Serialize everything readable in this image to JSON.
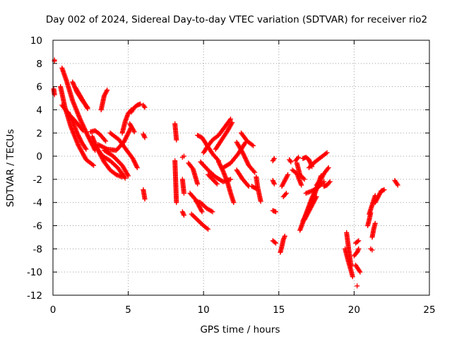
{
  "chart_data": {
    "type": "scatter",
    "title": "Day 002 of 2024, Sidereal Day-to-day VTEC variation (SDTVAR) for receiver rio2",
    "xlabel": "GPS time / hours",
    "ylabel": "SDTVAR / TECUs",
    "xlim": [
      0,
      25
    ],
    "ylim": [
      -12,
      10
    ],
    "xticks": [
      0,
      5,
      10,
      15,
      20,
      25
    ],
    "yticks": [
      -12,
      -10,
      -8,
      -6,
      -4,
      -2,
      0,
      2,
      4,
      6,
      8,
      10
    ],
    "grid": true,
    "marker": "+",
    "color": "#ff0000",
    "series": [
      {
        "name": "SDTVAR",
        "segments": [
          {
            "x": [
              0.05,
              0.1
            ],
            "y": [
              5.8,
              5.3
            ]
          },
          {
            "x": [
              0.1,
              0.1
            ],
            "y": [
              8.3,
              8.2
            ]
          },
          {
            "x": [
              0.6,
              0.9,
              1.3,
              1.8,
              2.3,
              2.8
            ],
            "y": [
              7.6,
              6.5,
              4.8,
              3.2,
              1.8,
              0.5
            ]
          },
          {
            "x": [
              0.5,
              0.8,
              1.2,
              1.7,
              2.2,
              2.7
            ],
            "y": [
              6.0,
              4.2,
              2.5,
              0.9,
              -0.3,
              -0.8
            ]
          },
          {
            "x": [
              0.6,
              1.0,
              1.5,
              2.0
            ],
            "y": [
              4.4,
              3.7,
              3.0,
              2.2
            ]
          },
          {
            "x": [
              1.0,
              1.3,
              1.6,
              1.9,
              2.2
            ],
            "y": [
              3.8,
              3.0,
              2.0,
              1.2,
              0.6
            ]
          },
          {
            "x": [
              1.3,
              1.6,
              2.0,
              2.3
            ],
            "y": [
              6.4,
              5.5,
              4.7,
              4.2
            ]
          },
          {
            "x": [
              1.5,
              1.9,
              2.3
            ],
            "y": [
              5.9,
              5.0,
              4.1
            ]
          },
          {
            "x": [
              2.6,
              3.0,
              3.4,
              3.8,
              4.2,
              4.6
            ],
            "y": [
              1.7,
              0.5,
              -0.5,
              -1.2,
              -1.6,
              -1.8
            ]
          },
          {
            "x": [
              2.5,
              2.9,
              3.3,
              3.8,
              4.3,
              4.8
            ],
            "y": [
              1.3,
              0.7,
              0.0,
              -0.4,
              -1.0,
              -1.9
            ]
          },
          {
            "x": [
              2.5,
              2.8,
              3.1,
              3.5
            ],
            "y": [
              2.1,
              2.2,
              1.9,
              1.3
            ]
          },
          {
            "x": [
              3.2,
              3.3,
              3.4,
              3.6
            ],
            "y": [
              4.0,
              4.6,
              5.2,
              5.7
            ]
          },
          {
            "x": [
              3.0,
              3.6,
              4.2,
              4.7,
              5.2
            ],
            "y": [
              1.0,
              0.6,
              0.5,
              1.2,
              2.5
            ]
          },
          {
            "x": [
              3.4,
              4.0,
              4.6,
              5.0
            ],
            "y": [
              0.5,
              0.0,
              -0.8,
              -1.7
            ]
          },
          {
            "x": [
              3.8,
              4.4,
              4.9,
              5.3,
              5.6
            ],
            "y": [
              2.0,
              1.4,
              0.5,
              -0.2,
              -1.0
            ]
          },
          {
            "x": [
              4.6,
              4.8,
              5.0,
              5.2
            ],
            "y": [
              2.0,
              3.0,
              3.7,
              4.0
            ]
          },
          {
            "x": [
              5.2,
              5.4,
              5.6,
              5.8
            ],
            "y": [
              3.8,
              4.2,
              4.4,
              4.5
            ]
          },
          {
            "x": [
              5.1,
              5.4
            ],
            "y": [
              2.8,
              2.1
            ]
          },
          {
            "x": [
              6.0,
              6.1
            ],
            "y": [
              4.4,
              4.2
            ]
          },
          {
            "x": [
              6.0,
              6.1
            ],
            "y": [
              1.9,
              1.6
            ]
          },
          {
            "x": [
              6.0,
              6.1
            ],
            "y": [
              -2.9,
              -3.7
            ]
          },
          {
            "x": [
              8.1,
              8.2
            ],
            "y": [
              2.8,
              1.4
            ]
          },
          {
            "x": [
              8.1,
              8.2
            ],
            "y": [
              -0.4,
              -4.0
            ]
          },
          {
            "x": [
              8.6,
              8.7
            ],
            "y": [
              -2.0,
              -3.2
            ]
          },
          {
            "x": [
              8.6,
              8.7
            ],
            "y": [
              -4.8,
              -5.1
            ]
          },
          {
            "x": [
              8.6,
              8.7
            ],
            "y": [
              -0.1,
              0.0
            ]
          },
          {
            "x": [
              9.0,
              9.3,
              9.6
            ],
            "y": [
              -0.6,
              -1.1,
              -2.4
            ]
          },
          {
            "x": [
              9.1,
              9.5,
              9.9
            ],
            "y": [
              -3.2,
              -3.8,
              -4.8
            ]
          },
          {
            "x": [
              9.2,
              9.6,
              10.0,
              10.3
            ],
            "y": [
              -5.0,
              -5.5,
              -6.0,
              -6.3
            ]
          },
          {
            "x": [
              9.5,
              9.8,
              10.2,
              10.6
            ],
            "y": [
              -3.9,
              -4.0,
              -4.5,
              -4.8
            ]
          },
          {
            "x": [
              9.6,
              9.9,
              10.2,
              10.6,
              11.0
            ],
            "y": [
              1.8,
              1.6,
              1.0,
              0.2,
              -0.4
            ]
          },
          {
            "x": [
              9.8,
              10.3,
              10.8,
              11.3,
              11.8
            ],
            "y": [
              -0.5,
              -1.2,
              -1.8,
              -2.2,
              -2.0
            ]
          },
          {
            "x": [
              10.0,
              10.3,
              10.6,
              11.0,
              11.4,
              11.8
            ],
            "y": [
              0.3,
              0.9,
              1.4,
              1.8,
              2.5,
              3.2
            ]
          },
          {
            "x": [
              10.8,
              11.2,
              11.6,
              11.9
            ],
            "y": [
              0.6,
              1.4,
              2.2,
              2.9
            ]
          },
          {
            "x": [
              10.3,
              10.6,
              10.9
            ],
            "y": [
              -1.6,
              -2.0,
              -2.4
            ]
          },
          {
            "x": [
              11.0,
              11.3,
              11.6,
              11.8,
              12.0
            ],
            "y": [
              -0.5,
              -1.3,
              -2.3,
              -3.2,
              -4.0
            ]
          },
          {
            "x": [
              11.3,
              11.8,
              12.3,
              12.8
            ],
            "y": [
              -1.0,
              -0.6,
              0.2,
              1.2
            ]
          },
          {
            "x": [
              12.2,
              12.6,
              13.0,
              13.4
            ],
            "y": [
              1.2,
              0.3,
              -0.8,
              -1.4
            ]
          },
          {
            "x": [
              12.5,
              12.9,
              13.3
            ],
            "y": [
              2.0,
              1.3,
              0.9
            ]
          },
          {
            "x": [
              12.2,
              12.6,
              13.0
            ],
            "y": [
              -1.2,
              -2.0,
              -2.6
            ]
          },
          {
            "x": [
              13.2,
              13.5
            ],
            "y": [
              -2.6,
              -2.8
            ]
          },
          {
            "x": [
              13.5,
              13.6,
              13.8
            ],
            "y": [
              -1.8,
              -2.7,
              -3.9
            ]
          },
          {
            "x": [
              14.6,
              14.7
            ],
            "y": [
              -0.4,
              -0.2
            ]
          },
          {
            "x": [
              14.6,
              14.7
            ],
            "y": [
              -2.1,
              -2.4
            ]
          },
          {
            "x": [
              14.6,
              14.8
            ],
            "y": [
              -4.7,
              -4.8
            ]
          },
          {
            "x": [
              14.6,
              14.8
            ],
            "y": [
              -7.3,
              -7.5
            ]
          },
          {
            "x": [
              15.1,
              15.2,
              15.3,
              15.4
            ],
            "y": [
              -8.3,
              -7.8,
              -7.2,
              -6.9
            ]
          },
          {
            "x": [
              15.2,
              15.4,
              15.6
            ],
            "y": [
              -2.6,
              -2.1,
              -1.6
            ]
          },
          {
            "x": [
              15.3,
              15.5
            ],
            "y": [
              -3.5,
              -3.2
            ]
          },
          {
            "x": [
              15.7,
              15.8
            ],
            "y": [
              -0.3,
              -0.5
            ]
          },
          {
            "x": [
              15.9,
              16.2,
              16.5
            ],
            "y": [
              -1.2,
              -1.5,
              -2.5
            ]
          },
          {
            "x": [
              16.1,
              16.3
            ],
            "y": [
              -0.4,
              -0.1
            ]
          },
          {
            "x": [
              16.2,
              16.4,
              16.7
            ],
            "y": [
              -0.6,
              -1.6,
              -2.0
            ]
          },
          {
            "x": [
              16.6,
              16.8,
              17.0,
              17.2
            ],
            "y": [
              -0.2,
              -0.1,
              -0.3,
              -0.9
            ]
          },
          {
            "x": [
              17.0,
              17.4,
              17.8,
              18.2
            ],
            "y": [
              -1.0,
              -0.5,
              -0.1,
              0.3
            ]
          },
          {
            "x": [
              16.4,
              16.8,
              17.2,
              17.6
            ],
            "y": [
              -6.4,
              -5.0,
              -3.6,
              -2.5
            ]
          },
          {
            "x": [
              16.6,
              17.0,
              17.4,
              17.8
            ],
            "y": [
              -5.6,
              -4.5,
              -3.2,
              -1.7
            ]
          },
          {
            "x": [
              16.8,
              17.2,
              17.6,
              18.0
            ],
            "y": [
              -3.2,
              -3.0,
              -2.7,
              -2.2
            ]
          },
          {
            "x": [
              16.7,
              17.1,
              17.5
            ],
            "y": [
              -5.5,
              -4.5,
              -3.5
            ]
          },
          {
            "x": [
              17.5,
              17.8,
              18.0,
              18.3
            ],
            "y": [
              -2.5,
              -2.0,
              -1.5,
              -1.0
            ]
          },
          {
            "x": [
              18.0,
              18.2,
              18.4
            ],
            "y": [
              -2.6,
              -2.5,
              -2.2
            ]
          },
          {
            "x": [
              19.5,
              19.6,
              19.7,
              19.8
            ],
            "y": [
              -6.6,
              -7.6,
              -8.6,
              -9.5
            ]
          },
          {
            "x": [
              19.4,
              19.6,
              19.8,
              19.9
            ],
            "y": [
              -8.0,
              -9.0,
              -9.9,
              -10.4
            ]
          },
          {
            "x": [
              20.0,
              20.2,
              20.3
            ],
            "y": [
              -8.6,
              -8.3,
              -8.0
            ]
          },
          {
            "x": [
              20.1,
              20.3,
              20.4
            ],
            "y": [
              -9.4,
              -9.8,
              -10.0
            ]
          },
          {
            "x": [
              20.1,
              20.3
            ],
            "y": [
              -7.5,
              -7.3
            ]
          },
          {
            "x": [
              20.2
            ],
            "y": [
              -11.2
            ]
          },
          {
            "x": [
              20.9,
              21.0,
              21.1
            ],
            "y": [
              -6.0,
              -5.5,
              -4.9
            ]
          },
          {
            "x": [
              21.0,
              21.2,
              21.4
            ],
            "y": [
              -5.0,
              -4.2,
              -3.4
            ]
          },
          {
            "x": [
              21.4,
              21.6,
              21.8,
              22.0
            ],
            "y": [
              -4.0,
              -3.5,
              -3.0,
              -2.9
            ]
          },
          {
            "x": [
              21.2,
              21.3,
              21.4
            ],
            "y": [
              -7.0,
              -6.3,
              -5.8
            ]
          },
          {
            "x": [
              21.1,
              21.2
            ],
            "y": [
              -8.0,
              -8.1
            ]
          },
          {
            "x": [
              22.7,
              22.8,
              22.9
            ],
            "y": [
              -2.1,
              -2.3,
              -2.5
            ]
          }
        ]
      }
    ]
  }
}
